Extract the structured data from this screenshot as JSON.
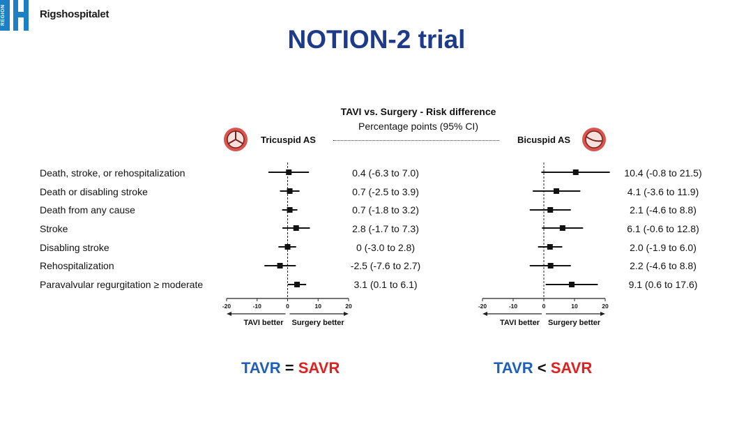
{
  "header": {
    "logo_region": "REGION",
    "logo_name": "Rigshospitalet",
    "slide_title": "NOTION-2 trial"
  },
  "chart_data": {
    "type": "forest",
    "title": "TAVI vs. Surgery - Risk difference",
    "subtitle": "Percentage points (95% CI)",
    "xlim": [
      -20,
      20
    ],
    "xticks": [
      -20,
      -10,
      0,
      10,
      20
    ],
    "left_direction_label": "TAVI better",
    "right_direction_label": "Surgery better",
    "outcomes": [
      "Death, stroke, or rehospitalization",
      "Death or disabling stroke",
      "Death from any cause",
      "Stroke",
      "Disabling stroke",
      "Rehospitalization",
      "Paravalvular regurgitation ≥ moderate"
    ],
    "panels": [
      {
        "name": "Tricuspid AS",
        "values": [
          0.4,
          0.7,
          0.7,
          2.8,
          0,
          -2.5,
          3.1
        ],
        "lower": [
          -6.3,
          -2.5,
          -1.8,
          -1.7,
          -3.0,
          -7.6,
          0.1
        ],
        "upper": [
          7.0,
          3.9,
          3.2,
          7.3,
          2.8,
          2.7,
          6.1
        ],
        "ci_text": [
          "0.4 (-6.3 to 7.0)",
          "0.7 (-2.5 to 3.9)",
          "0.7 (-1.8 to 3.2)",
          "2.8 (-1.7 to 7.3)",
          "0 (-3.0 to 2.8)",
          "-2.5 (-7.6 to 2.7)",
          "3.1 (0.1 to 6.1)"
        ]
      },
      {
        "name": "Bicuspid AS",
        "values": [
          10.4,
          4.1,
          2.1,
          6.1,
          2.0,
          2.2,
          9.1
        ],
        "lower": [
          -0.8,
          -3.6,
          -4.6,
          -0.6,
          -1.9,
          -4.6,
          0.6
        ],
        "upper": [
          21.5,
          11.9,
          8.8,
          12.8,
          6.0,
          8.8,
          17.6
        ],
        "ci_text": [
          "10.4 (-0.8 to 21.5)",
          "4.1 (-3.6 to 11.9)",
          "2.1 (-4.6 to 8.8)",
          "6.1 (-0.6 to 12.8)",
          "2.0 (-1.9 to 6.0)",
          "2.2 (-4.6 to 8.8)",
          "9.1 (0.6 to 17.6)"
        ]
      }
    ]
  },
  "conclusions": [
    {
      "left": "TAVR",
      "op": "=",
      "right": "SAVR"
    },
    {
      "left": "TAVR",
      "op": "<",
      "right": "SAVR"
    }
  ],
  "icons": {
    "valve": "valve-icon",
    "logo": "region-h-logo"
  },
  "colors": {
    "title": "#1e3a8a",
    "tavr": "#1f5fb8",
    "savr": "#e0201f",
    "logo": "#1f7fc4",
    "valve": "#c0392b"
  }
}
